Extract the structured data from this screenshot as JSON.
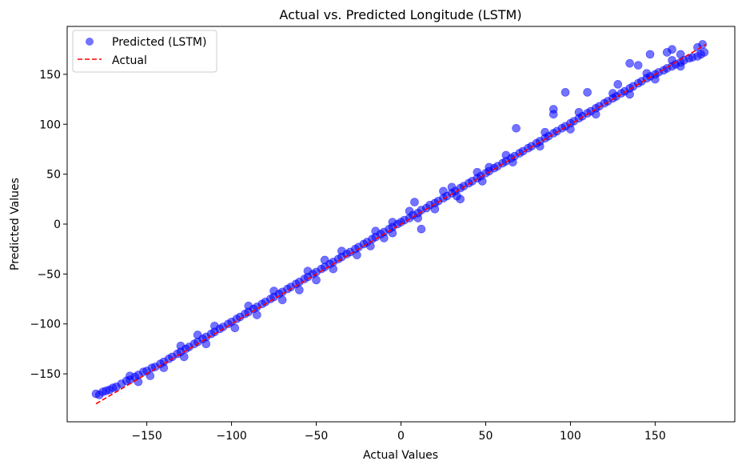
{
  "chart_data": {
    "type": "scatter",
    "title": "Actual vs. Predicted Longitude (LSTM)",
    "xlabel": "Actual Values",
    "ylabel": "Predicted Values",
    "xlim": [
      -197,
      197
    ],
    "ylim": [
      -198,
      198
    ],
    "xticks": [
      -150,
      -100,
      -50,
      0,
      50,
      100,
      150
    ],
    "yticks": [
      -150,
      -100,
      -50,
      0,
      50,
      100,
      150
    ],
    "xtick_labels": [
      "−150",
      "−100",
      "−50",
      "0",
      "50",
      "100",
      "150"
    ],
    "ytick_labels": [
      "−150",
      "−100",
      "−50",
      "0",
      "50",
      "100",
      "150"
    ],
    "grid": false,
    "legend_position": "top-left",
    "series": [
      {
        "name": "Predicted (LSTM)",
        "kind": "scatter",
        "color": "#0000ff",
        "alpha": 0.55,
        "points": [
          [
            -180,
            -170
          ],
          [
            -178,
            -171
          ],
          [
            -176,
            -168
          ],
          [
            -174,
            -167
          ],
          [
            -172,
            -166
          ],
          [
            -170,
            -164
          ],
          [
            -168,
            -163
          ],
          [
            -165,
            -160
          ],
          [
            -162,
            -157
          ],
          [
            -160,
            -156
          ],
          [
            -157,
            -153
          ],
          [
            -155,
            -151
          ],
          [
            -152,
            -148
          ],
          [
            -150,
            -147
          ],
          [
            -147,
            -144
          ],
          [
            -145,
            -143
          ],
          [
            -142,
            -140
          ],
          [
            -140,
            -138
          ],
          [
            -137,
            -135
          ],
          [
            -135,
            -133
          ],
          [
            -132,
            -130
          ],
          [
            -130,
            -128
          ],
          [
            -127,
            -125
          ],
          [
            -125,
            -123
          ],
          [
            -122,
            -120
          ],
          [
            -120,
            -118
          ],
          [
            -117,
            -115
          ],
          [
            -115,
            -113
          ],
          [
            -112,
            -110
          ],
          [
            -110,
            -108
          ],
          [
            -107,
            -105
          ],
          [
            -105,
            -103
          ],
          [
            -102,
            -100
          ],
          [
            -100,
            -98
          ],
          [
            -97,
            -95
          ],
          [
            -95,
            -93
          ],
          [
            -92,
            -90
          ],
          [
            -90,
            -88
          ],
          [
            -87,
            -85
          ],
          [
            -85,
            -83
          ],
          [
            -82,
            -80
          ],
          [
            -80,
            -78
          ],
          [
            -77,
            -75
          ],
          [
            -75,
            -73
          ],
          [
            -72,
            -70
          ],
          [
            -70,
            -68
          ],
          [
            -67,
            -65
          ],
          [
            -65,
            -63
          ],
          [
            -62,
            -60
          ],
          [
            -60,
            -58
          ],
          [
            -57,
            -55
          ],
          [
            -55,
            -53
          ],
          [
            -52,
            -50
          ],
          [
            -50,
            -48
          ],
          [
            -47,
            -45
          ],
          [
            -45,
            -43
          ],
          [
            -42,
            -40
          ],
          [
            -40,
            -38
          ],
          [
            -37,
            -35
          ],
          [
            -35,
            -33
          ],
          [
            -32,
            -30
          ],
          [
            -30,
            -28
          ],
          [
            -27,
            -25
          ],
          [
            -25,
            -23
          ],
          [
            -22,
            -20
          ],
          [
            -20,
            -18
          ],
          [
            -17,
            -15
          ],
          [
            -15,
            -13
          ],
          [
            -12,
            -10
          ],
          [
            -10,
            -8
          ],
          [
            -7,
            -5
          ],
          [
            -5,
            -3
          ],
          [
            -2,
            0
          ],
          [
            0,
            2
          ],
          [
            2,
            4
          ],
          [
            5,
            6
          ],
          [
            7,
            9
          ],
          [
            10,
            11
          ],
          [
            12,
            14
          ],
          [
            15,
            16
          ],
          [
            17,
            19
          ],
          [
            20,
            21
          ],
          [
            22,
            23
          ],
          [
            25,
            26
          ],
          [
            27,
            28
          ],
          [
            30,
            31
          ],
          [
            32,
            33
          ],
          [
            35,
            36
          ],
          [
            37,
            38
          ],
          [
            40,
            41
          ],
          [
            42,
            43
          ],
          [
            45,
            46
          ],
          [
            47,
            48
          ],
          [
            50,
            51
          ],
          [
            52,
            53
          ],
          [
            55,
            56
          ],
          [
            57,
            58
          ],
          [
            60,
            61
          ],
          [
            62,
            63
          ],
          [
            65,
            66
          ],
          [
            67,
            68
          ],
          [
            70,
            71
          ],
          [
            72,
            73
          ],
          [
            75,
            76
          ],
          [
            77,
            78
          ],
          [
            80,
            81
          ],
          [
            82,
            83
          ],
          [
            85,
            86
          ],
          [
            87,
            88
          ],
          [
            90,
            91
          ],
          [
            92,
            93
          ],
          [
            95,
            96
          ],
          [
            97,
            98
          ],
          [
            100,
            101
          ],
          [
            102,
            103
          ],
          [
            105,
            106
          ],
          [
            107,
            108
          ],
          [
            110,
            111
          ],
          [
            112,
            113
          ],
          [
            115,
            116
          ],
          [
            117,
            118
          ],
          [
            120,
            121
          ],
          [
            122,
            123
          ],
          [
            125,
            126
          ],
          [
            127,
            128
          ],
          [
            130,
            131
          ],
          [
            132,
            133
          ],
          [
            135,
            136
          ],
          [
            137,
            138
          ],
          [
            140,
            141
          ],
          [
            142,
            143
          ],
          [
            145,
            146
          ],
          [
            147,
            148
          ],
          [
            150,
            150
          ],
          [
            152,
            152
          ],
          [
            155,
            154
          ],
          [
            157,
            156
          ],
          [
            160,
            158
          ],
          [
            162,
            160
          ],
          [
            165,
            162
          ],
          [
            167,
            164
          ],
          [
            170,
            166
          ],
          [
            172,
            167
          ],
          [
            175,
            168
          ],
          [
            177,
            170
          ],
          [
            179,
            172
          ],
          [
            -148,
            -152
          ],
          [
            -140,
            -144
          ],
          [
            -128,
            -133
          ],
          [
            -115,
            -120
          ],
          [
            -98,
            -104
          ],
          [
            -85,
            -91
          ],
          [
            -70,
            -76
          ],
          [
            -60,
            -66
          ],
          [
            -50,
            -56
          ],
          [
            -40,
            -45
          ],
          [
            -26,
            -31
          ],
          [
            -18,
            -22
          ],
          [
            -5,
            -9
          ],
          [
            10,
            6
          ],
          [
            20,
            15
          ],
          [
            33,
            28
          ],
          [
            48,
            43
          ],
          [
            66,
            62
          ],
          [
            82,
            78
          ],
          [
            100,
            95
          ],
          [
            115,
            110
          ],
          [
            135,
            130
          ],
          [
            150,
            145
          ],
          [
            165,
            158
          ],
          [
            -160,
            -152
          ],
          [
            -130,
            -122
          ],
          [
            -110,
            -102
          ],
          [
            -90,
            -82
          ],
          [
            -75,
            -67
          ],
          [
            -55,
            -47
          ],
          [
            -35,
            -27
          ],
          [
            -15,
            -7
          ],
          [
            5,
            13
          ],
          [
            25,
            33
          ],
          [
            45,
            52
          ],
          [
            62,
            69
          ],
          [
            85,
            92
          ],
          [
            105,
            112
          ],
          [
            125,
            131
          ],
          [
            145,
            151
          ],
          [
            160,
            164
          ],
          [
            12,
            -5
          ],
          [
            8,
            22
          ],
          [
            35,
            25
          ],
          [
            68,
            96
          ],
          [
            90,
            115
          ],
          [
            90,
            110
          ],
          [
            97,
            132
          ],
          [
            110,
            132
          ],
          [
            128,
            140
          ],
          [
            135,
            161
          ],
          [
            140,
            159
          ],
          [
            147,
            170
          ],
          [
            157,
            172
          ],
          [
            160,
            175
          ],
          [
            165,
            170
          ],
          [
            178,
            180
          ],
          [
            175,
            177
          ],
          [
            -10,
            -14
          ],
          [
            -5,
            2
          ],
          [
            30,
            37
          ],
          [
            52,
            57
          ],
          [
            -45,
            -36
          ],
          [
            -120,
            -111
          ],
          [
            -155,
            -158
          ]
        ]
      },
      {
        "name": "Actual",
        "kind": "line",
        "color": "#ff0000",
        "dash": "dashed",
        "x": [
          -180,
          180
        ],
        "y": [
          -180,
          180
        ]
      }
    ]
  }
}
